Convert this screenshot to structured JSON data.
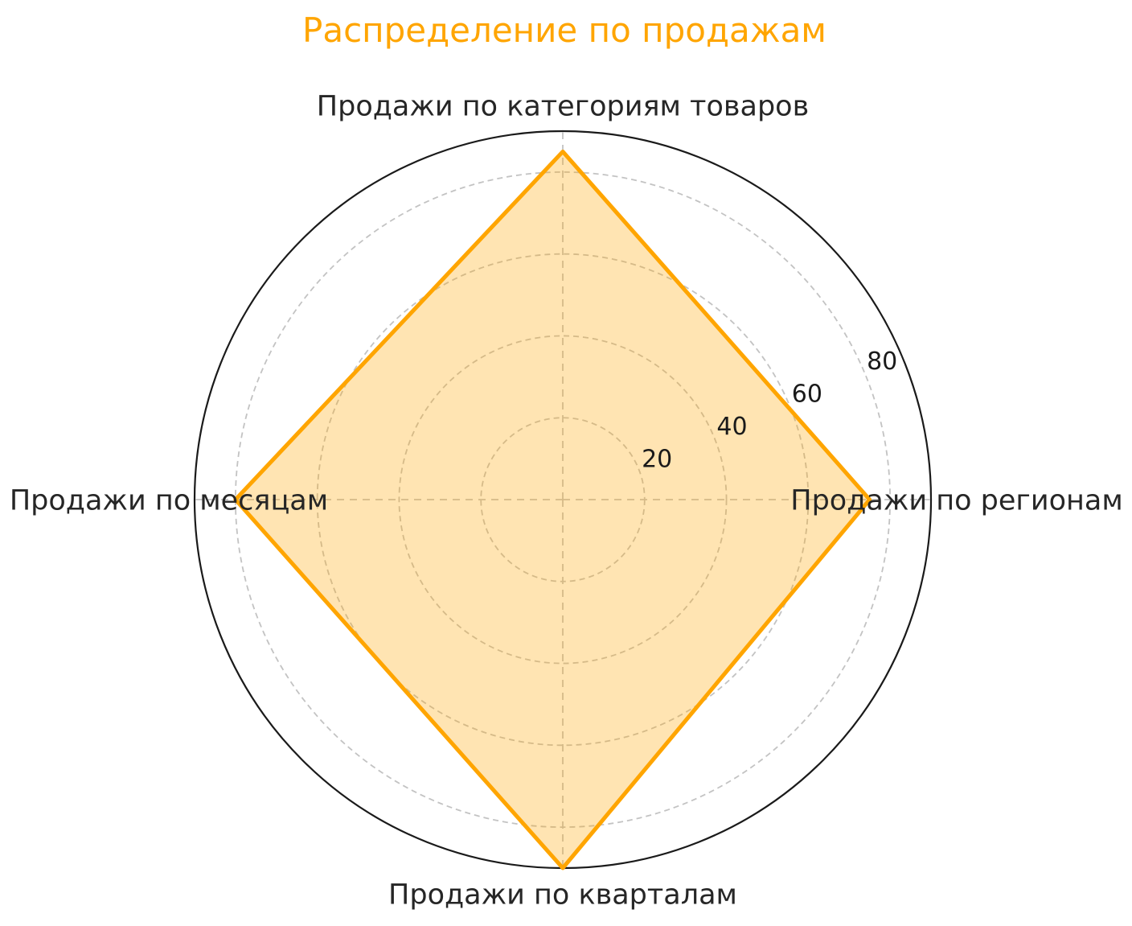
{
  "chart_data": {
    "type": "radar",
    "title": "Распределение по продажам",
    "categories": [
      "Продажи по категориям товаров",
      "Продажи по регионам",
      "Продажи по кварталам",
      "Продажи по месяцам"
    ],
    "values": [
      85,
      75,
      90,
      80
    ],
    "angles_deg": [
      90,
      0,
      270,
      180
    ],
    "r_ticks": [
      20,
      40,
      60,
      80
    ],
    "r_tick_labels": [
      "20",
      "40",
      "60",
      "80"
    ],
    "r_max": 90,
    "grid": "on",
    "legend": "none",
    "colors": {
      "background": "#ffffff",
      "title": "#FFA500",
      "series": "#FFA500",
      "series_fill_opacity": 0.3,
      "grid": "#c3c3c3",
      "outer_ring": "#1a1a1a",
      "labels": "#262626",
      "ticks": "#1a1a1a"
    }
  }
}
